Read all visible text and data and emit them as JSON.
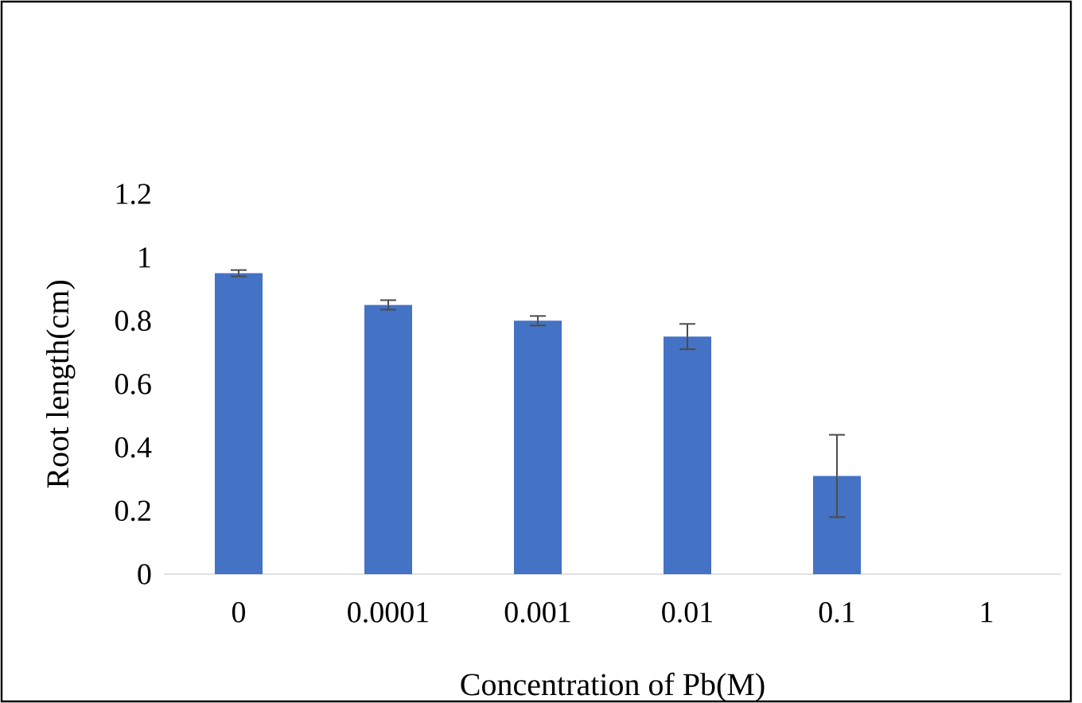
{
  "chart_data": {
    "type": "bar",
    "xlabel": "Concentration of Pb(M)",
    "ylabel": "Root length(cm)",
    "categories": [
      "0",
      "0.0001",
      "0.001",
      "0.01",
      "0.1",
      "1"
    ],
    "values": [
      0.95,
      0.85,
      0.8,
      0.75,
      0.31,
      0
    ],
    "errors": [
      0.01,
      0.015,
      0.015,
      0.04,
      0.13,
      null
    ],
    "color": "#4472c4",
    "ylim": [
      0,
      1.2
    ],
    "yticks": [
      0,
      0.2,
      0.4,
      0.6,
      0.8,
      1,
      1.2
    ],
    "grid": false
  }
}
